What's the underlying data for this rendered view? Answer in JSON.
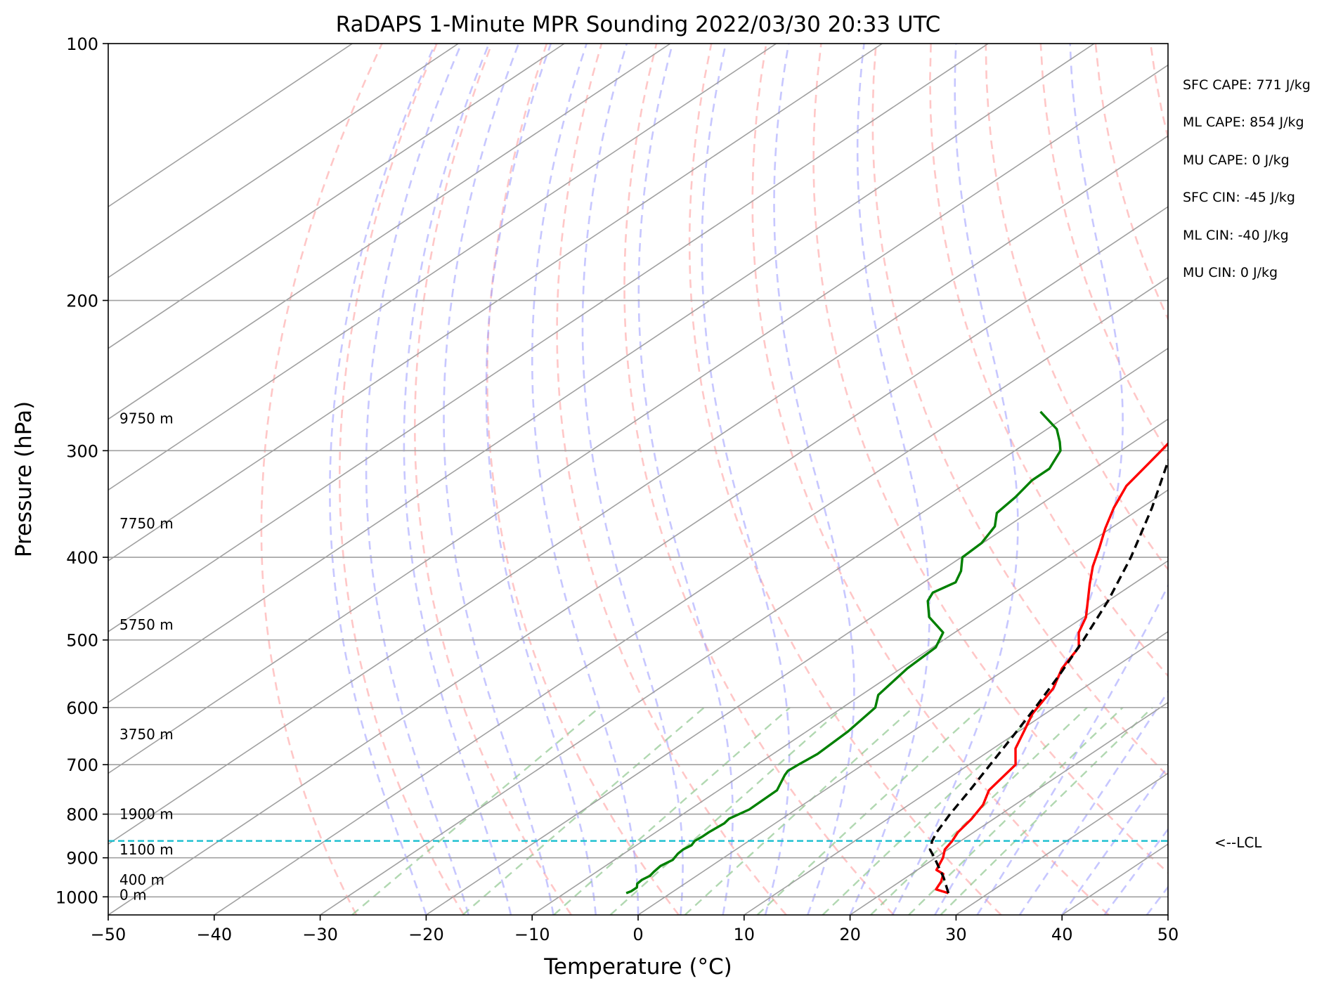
{
  "chart_data": {
    "type": "line",
    "title": "RaDAPS 1-Minute MPR Sounding 2022/03/30 20:33 UTC",
    "xlabel": "Temperature (°C)",
    "ylabel": "Pressure (hPa)",
    "xlim": [
      -50,
      50
    ],
    "ylim": [
      1050,
      100
    ],
    "y_scale": "log",
    "skew_t": true,
    "x_ticks": [
      -50,
      -40,
      -30,
      -20,
      -10,
      0,
      10,
      20,
      30,
      40,
      50
    ],
    "x_tick_labels": [
      "−50",
      "−40",
      "−30",
      "−20",
      "−10",
      "0",
      "10",
      "20",
      "30",
      "40",
      "50"
    ],
    "y_ticks": [
      100,
      200,
      300,
      400,
      500,
      600,
      700,
      800,
      900,
      1000
    ],
    "y_tick_labels": [
      "100",
      "200",
      "300",
      "400",
      "500",
      "600",
      "700",
      "800",
      "900",
      "1000"
    ],
    "grid": true,
    "series": [
      {
        "color": "#ff0000",
        "pressure": [
          990,
          980,
          960,
          940,
          930,
          900,
          880,
          860,
          840,
          810,
          780,
          750,
          700,
          670,
          640,
          610,
          570,
          540,
          510,
          490,
          470,
          450,
          430,
          410,
          390,
          370,
          350,
          330,
          310,
          295,
          285,
          275,
          270
        ],
        "values": [
          26.2,
          24.5,
          23.9,
          23.0,
          21.8,
          20.7,
          19.7,
          19.2,
          18.5,
          17.9,
          17.0,
          15.5,
          14.4,
          12.1,
          10.5,
          8.8,
          7.2,
          5.2,
          3.8,
          1.7,
          0.2,
          -1.9,
          -4.1,
          -6.3,
          -8.3,
          -10.5,
          -12.6,
          -14.5,
          -15.6,
          -16.5,
          -17.2,
          -17.9,
          -18.2
        ]
      },
      {
        "color": "#008000",
        "pressure": [
          990,
          985,
          975,
          965,
          955,
          945,
          935,
          920,
          905,
          890,
          880,
          870,
          860,
          850,
          840,
          820,
          810,
          790,
          750,
          720,
          712,
          700,
          680,
          640,
          600,
          580,
          540,
          510,
          490,
          470,
          450,
          440,
          428,
          415,
          400,
          385,
          368,
          355,
          340,
          325,
          315,
          300,
          293,
          283,
          270
        ],
        "values": [
          -4.2,
          -4.0,
          -4.0,
          -4.5,
          -4.6,
          -4.4,
          -4.6,
          -4.8,
          -4.5,
          -4.9,
          -5.0,
          -4.8,
          -5.1,
          -5.0,
          -5.0,
          -4.8,
          -5.0,
          -4.4,
          -4.5,
          -5.9,
          -6.2,
          -6.1,
          -5.8,
          -6.1,
          -6.9,
          -8.4,
          -9.4,
          -9.7,
          -11.1,
          -14.6,
          -17.0,
          -17.7,
          -17.0,
          -18.1,
          -19.9,
          -20.1,
          -21.2,
          -22.9,
          -23.4,
          -24.2,
          -24.2,
          -25.7,
          -27.0,
          -29.1,
          -33.1
        ]
      },
      {
        "color": "#000000",
        "pressure": [
          990,
          950,
          920,
          900,
          880,
          860,
          840,
          800,
          750,
          700,
          650,
          600,
          550,
          500,
          450,
          400,
          350,
          300,
          270
        ],
        "values": [
          26.2,
          23.6,
          21.4,
          19.9,
          18.3,
          17.3,
          16.5,
          15.2,
          13.7,
          12.0,
          10.2,
          8.2,
          5.9,
          3.2,
          0.0,
          -4.0,
          -9.0,
          -15.2,
          -19.6
        ]
      }
    ],
    "lcl_pressure": 860,
    "height_labels": [
      {
        "text": "9750 m",
        "pressure": 275
      },
      {
        "text": "7750 m",
        "pressure": 365
      },
      {
        "text": "5750 m",
        "pressure": 480
      },
      {
        "text": "3750 m",
        "pressure": 645
      },
      {
        "text": "1900 m",
        "pressure": 800
      },
      {
        "text": "1100 m",
        "pressure": 880
      },
      {
        "text": "400 m",
        "pressure": 955
      },
      {
        "text": "0 m",
        "pressure": 995
      }
    ],
    "annotations": {
      "sfc_cape": "SFC CAPE: 771 J/kg",
      "ml_cape": "ML CAPE: 854 J/kg",
      "mu_cape": "MU CAPE: 0 J/kg",
      "sfc_cin": "SFC CIN: -45 J/kg",
      "ml_cin": "ML CIN: -40 J/kg",
      "mu_cin": "MU CIN: 0 J/kg",
      "lcl": "<--LCL"
    },
    "colors": {
      "temperature": "#ff0000",
      "dewpoint": "#008000",
      "parcel": "#000000",
      "lcl_line": "#17becf",
      "dry_adiabats": "#ff9999",
      "moist_adiabats": "#9999ff",
      "mixing_ratio": "#90c890",
      "isotherms": "#a0a0a0"
    }
  }
}
